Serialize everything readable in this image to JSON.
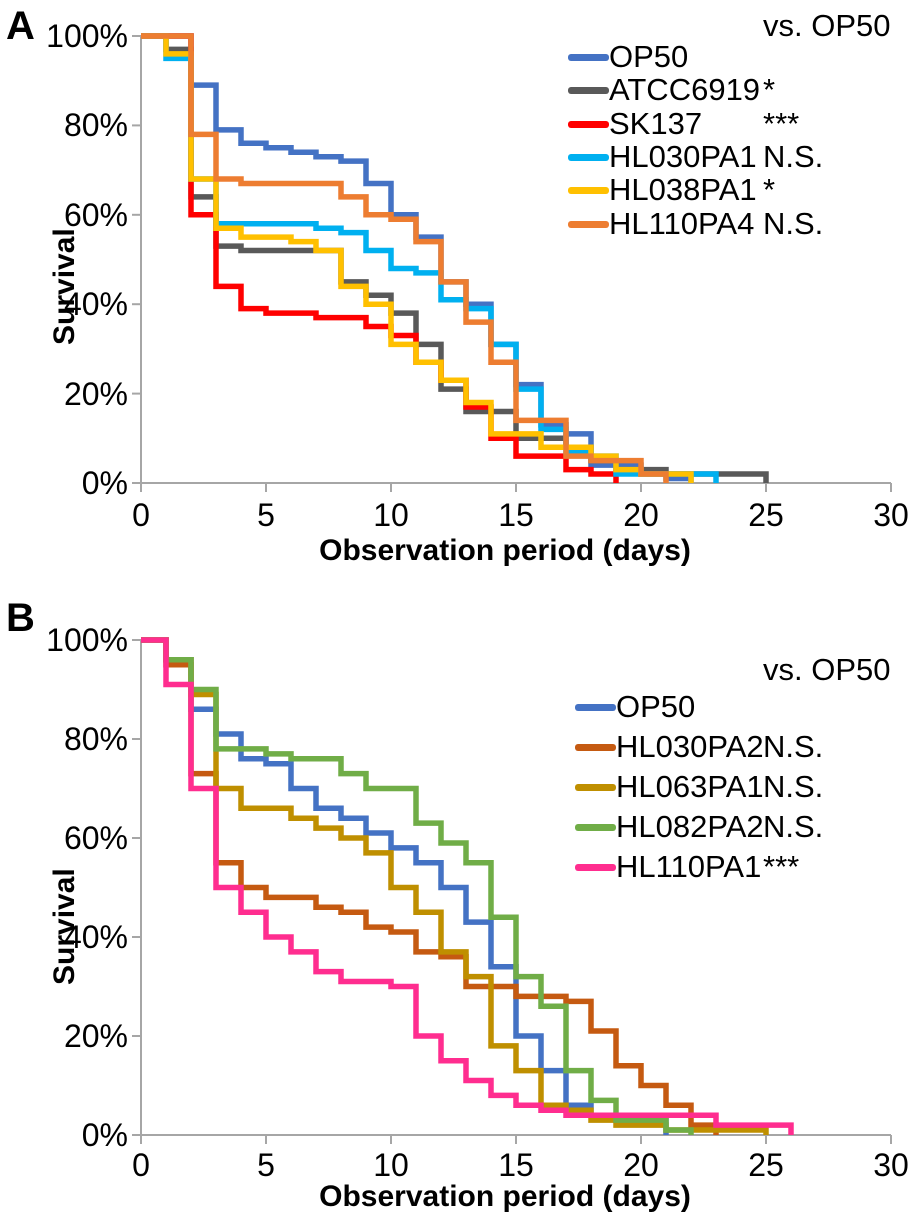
{
  "chart_data": [
    {
      "type": "line",
      "step": true,
      "panel": "A",
      "title": "",
      "xlabel": "Observation period (days)",
      "ylabel": "Survival",
      "legend_note": "vs. OP50",
      "x_ticks": [
        "0",
        "5",
        "10",
        "15",
        "20",
        "25",
        "30"
      ],
      "y_ticks": [
        "100%",
        "80%",
        "60%",
        "40%",
        "20%",
        "0%"
      ],
      "xlim": [
        0,
        30
      ],
      "ylim": [
        0,
        100
      ],
      "grid": false,
      "legend_position": "upper right",
      "x_unit": "days",
      "series": [
        {
          "name": "OP50",
          "color": "#4472C4",
          "significance": "",
          "values": [
            100,
            100,
            89,
            79,
            76,
            75,
            74,
            73,
            72,
            67,
            60,
            55,
            45,
            40,
            31,
            22,
            13,
            11,
            4,
            4,
            2,
            1,
            0
          ]
        },
        {
          "name": "ATCC6919",
          "color": "#595959",
          "significance": "*",
          "values": [
            100,
            97,
            64,
            53,
            52,
            52,
            52,
            52,
            45,
            42,
            38,
            31,
            21,
            16,
            16,
            10,
            10,
            8,
            5,
            3,
            3,
            2,
            2,
            2,
            2,
            0
          ]
        },
        {
          "name": "SK137",
          "color": "#FF0000",
          "significance": "***",
          "values": [
            100,
            100,
            60,
            44,
            39,
            38,
            38,
            37,
            37,
            35,
            33,
            27,
            23,
            17,
            10,
            6,
            6,
            3,
            2,
            0
          ]
        },
        {
          "name": "HL030PA1",
          "color": "#00B0F0",
          "significance": "N.S.",
          "values": [
            100,
            95,
            68,
            58,
            58,
            58,
            58,
            57,
            56,
            52,
            48,
            47,
            41,
            39,
            31,
            21,
            12,
            7,
            6,
            2,
            2,
            2,
            2,
            0
          ]
        },
        {
          "name": "HL038PA1",
          "color": "#FFC000",
          "significance": "*",
          "values": [
            100,
            96,
            68,
            57,
            55,
            55,
            54,
            52,
            44,
            40,
            31,
            27,
            23,
            18,
            11,
            11,
            8,
            8,
            6,
            3,
            2,
            2,
            0
          ]
        },
        {
          "name": "HL110PA4",
          "color": "#ED7D31",
          "significance": "N.S.",
          "values": [
            100,
            100,
            78,
            68,
            67,
            67,
            67,
            67,
            64,
            60,
            59,
            54,
            45,
            36,
            27,
            14,
            14,
            6,
            5,
            5,
            2,
            0
          ]
        }
      ]
    },
    {
      "type": "line",
      "step": true,
      "panel": "B",
      "title": "",
      "xlabel": "Observation period (days)",
      "ylabel": "Survival",
      "legend_note": "vs. OP50",
      "x_ticks": [
        "0",
        "5",
        "10",
        "15",
        "20",
        "25",
        "30"
      ],
      "y_ticks": [
        "100%",
        "80%",
        "60%",
        "40%",
        "20%",
        "0%"
      ],
      "xlim": [
        0,
        30
      ],
      "ylim": [
        0,
        100
      ],
      "grid": false,
      "legend_position": "upper right",
      "x_unit": "days",
      "series": [
        {
          "name": "OP50",
          "color": "#4472C4",
          "significance": "",
          "values": [
            100,
            96,
            86,
            81,
            76,
            75,
            70,
            66,
            64,
            61,
            58,
            55,
            50,
            43,
            34,
            20,
            13,
            6,
            4,
            3,
            3,
            0
          ]
        },
        {
          "name": "HL030PA2",
          "color": "#C55A11",
          "significance": "N.S.",
          "values": [
            100,
            95,
            73,
            55,
            50,
            48,
            48,
            46,
            45,
            42,
            41,
            37,
            36,
            30,
            30,
            28,
            28,
            27,
            21,
            14,
            10,
            6,
            2,
            0
          ]
        },
        {
          "name": "HL063PA1",
          "color": "#BF8F00",
          "significance": "N.S.",
          "values": [
            100,
            96,
            89,
            70,
            66,
            66,
            64,
            62,
            60,
            57,
            50,
            45,
            37,
            32,
            18,
            13,
            6,
            5,
            3,
            2,
            2,
            1,
            1,
            1,
            1,
            0
          ]
        },
        {
          "name": "HL082PA2",
          "color": "#70AD47",
          "significance": "N.S.",
          "values": [
            100,
            96,
            90,
            78,
            78,
            77,
            76,
            76,
            73,
            70,
            70,
            63,
            59,
            55,
            44,
            32,
            26,
            13,
            7,
            3,
            3,
            1,
            0
          ]
        },
        {
          "name": "HL110PA1",
          "color": "#FF2D8F",
          "significance": "***",
          "values": [
            100,
            91,
            70,
            50,
            45,
            40,
            37,
            33,
            31,
            31,
            30,
            20,
            15,
            11,
            8,
            6,
            5,
            4,
            4,
            4,
            4,
            4,
            4,
            2,
            2,
            2,
            0
          ]
        }
      ]
    }
  ],
  "style": {
    "axis_color": "#A6A6A6",
    "text_color": "#000000"
  }
}
